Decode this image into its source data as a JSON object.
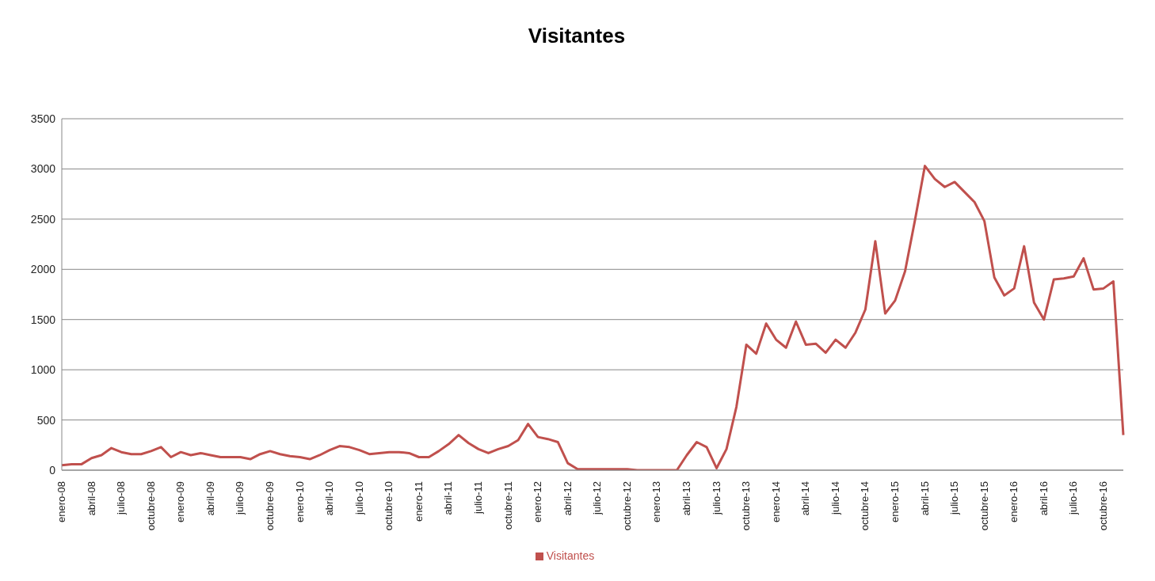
{
  "chart_data": {
    "type": "line",
    "title": "Visitantes",
    "categories": [
      "enero-08",
      null,
      null,
      "abril-08",
      null,
      null,
      "julio-08",
      null,
      null,
      "octubre-08",
      null,
      null,
      "enero-09",
      null,
      null,
      "abril-09",
      null,
      null,
      "julio-09",
      null,
      null,
      "octubre-09",
      null,
      null,
      "enero-10",
      null,
      null,
      "abril-10",
      null,
      null,
      "julio-10",
      null,
      null,
      "octubre-10",
      null,
      null,
      "enero-11",
      null,
      null,
      "abril-11",
      null,
      null,
      "julio-11",
      null,
      null,
      "octubre-11",
      null,
      null,
      "enero-12",
      null,
      null,
      "abril-12",
      null,
      null,
      "julio-12",
      null,
      null,
      "octubre-12",
      null,
      null,
      "enero-13",
      null,
      null,
      "abril-13",
      null,
      null,
      "julio-13",
      null,
      null,
      "octubre-13",
      null,
      null,
      "enero-14",
      null,
      null,
      "abril-14",
      null,
      null,
      "julio-14",
      null,
      null,
      "octubre-14",
      null,
      null,
      "enero-15",
      null,
      null,
      "abril-15",
      null,
      null,
      "julio-15",
      null,
      null,
      "octubre-15",
      null,
      null,
      "enero-16",
      null,
      null,
      "abril-16",
      null,
      null,
      "julio-16",
      null,
      null,
      "octubre-16",
      null,
      null
    ],
    "series": [
      {
        "name": "Visitantes",
        "color": "#c0504d",
        "values": [
          50,
          60,
          60,
          120,
          150,
          220,
          180,
          160,
          160,
          190,
          230,
          130,
          180,
          150,
          170,
          150,
          130,
          130,
          130,
          110,
          160,
          190,
          160,
          140,
          130,
          110,
          150,
          200,
          240,
          230,
          200,
          160,
          170,
          180,
          180,
          170,
          130,
          130,
          190,
          260,
          350,
          270,
          210,
          170,
          210,
          240,
          300,
          460,
          330,
          310,
          280,
          70,
          10,
          10,
          10,
          10,
          10,
          10,
          0,
          0,
          0,
          0,
          0,
          150,
          280,
          230,
          20,
          210,
          630,
          1250,
          1160,
          1460,
          1300,
          1220,
          1480,
          1250,
          1260,
          1170,
          1300,
          1220,
          1370,
          1600,
          2280,
          1560,
          1690,
          1980,
          2490,
          3030,
          2900,
          2820,
          2870,
          2770,
          2670,
          2480,
          1920,
          1740,
          1810,
          2230,
          1670,
          1500,
          1900,
          1910,
          1930,
          2110,
          1800,
          1810,
          1880,
          350
        ]
      }
    ],
    "ylim": [
      0,
      3500
    ],
    "yticks": [
      0,
      500,
      1000,
      1500,
      2000,
      2500,
      3000,
      3500
    ],
    "grid": "y",
    "legend": "bottom"
  }
}
